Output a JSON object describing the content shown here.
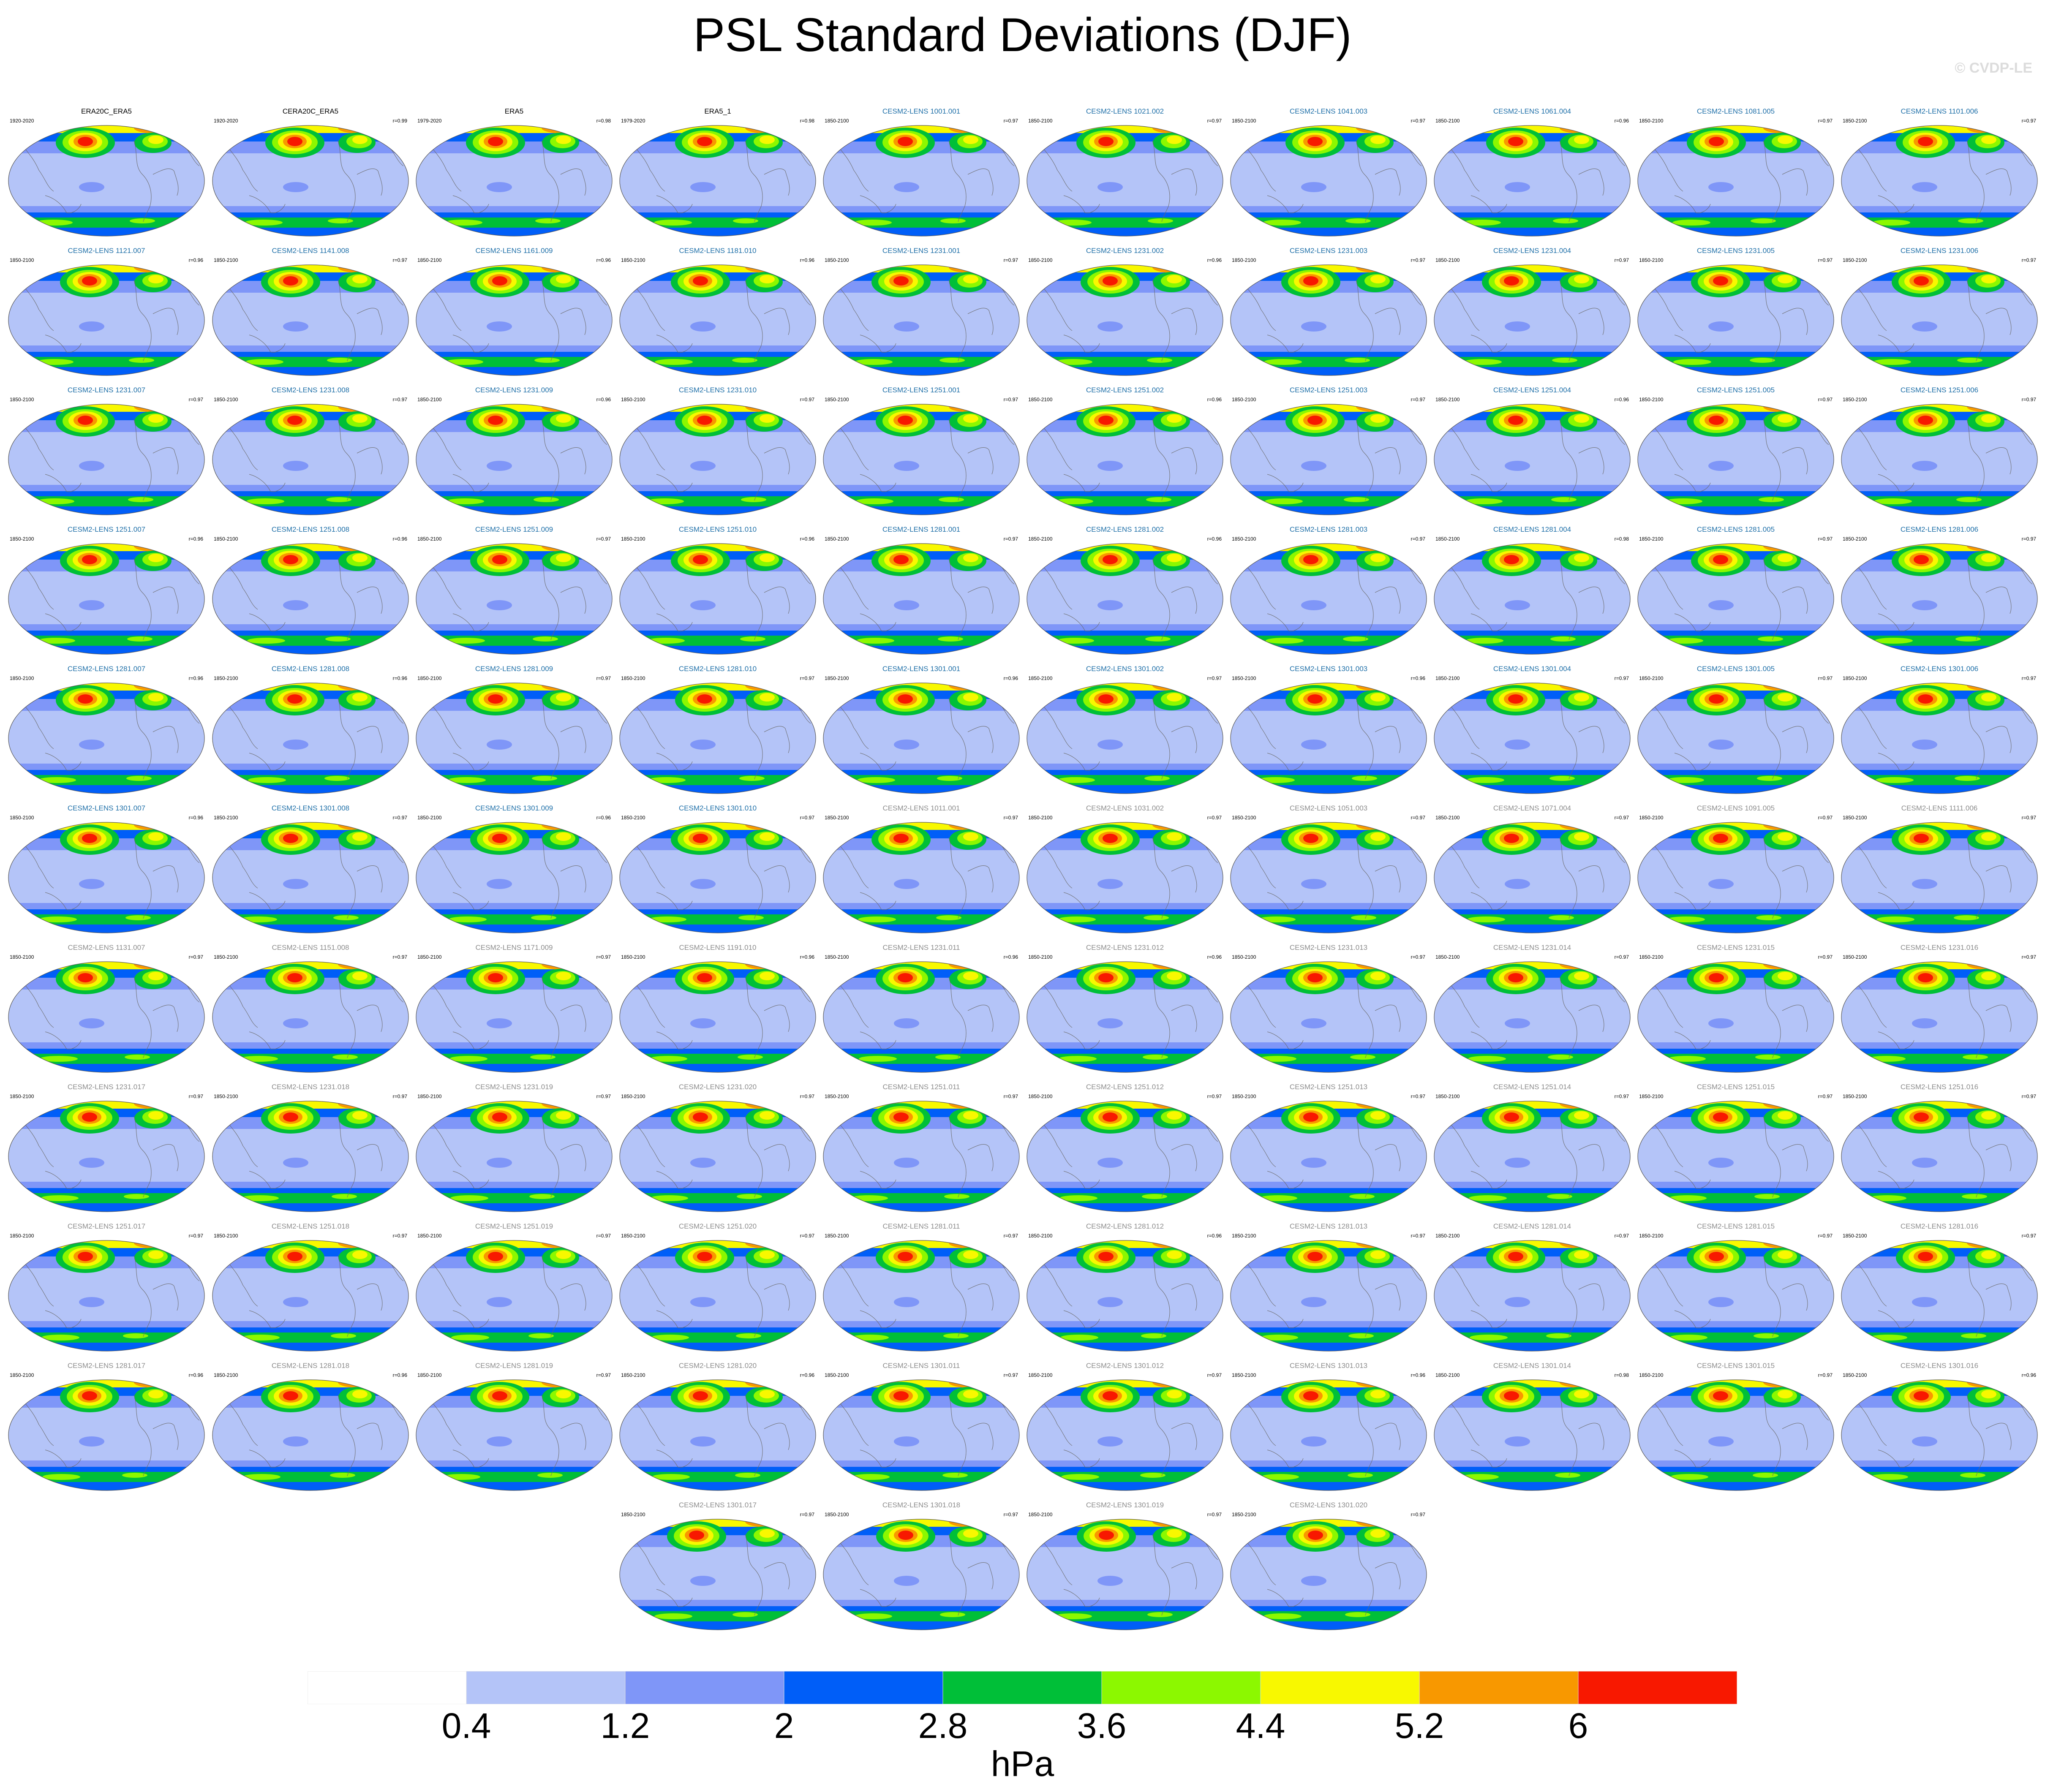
{
  "title": "PSL Standard Deviations (DJF)",
  "watermark": "© CVDP-LE",
  "panels": [
    {
      "name": "ERA20C_ERA5",
      "years": "1920-2020",
      "r": "",
      "style": "obs"
    },
    {
      "name": "CERA20C_ERA5",
      "years": "1920-2020",
      "r": "r=0.99",
      "style": "obs"
    },
    {
      "name": "ERA5",
      "years": "1979-2020",
      "r": "r=0.98",
      "style": "obs"
    },
    {
      "name": "ERA5_1",
      "years": "1979-2020",
      "r": "r=0.98",
      "style": "obs"
    },
    {
      "name": "CESM2-LENS 1001.001",
      "years": "1850-2100",
      "r": "r=0.97",
      "style": "c1"
    },
    {
      "name": "CESM2-LENS 1021.002",
      "years": "1850-2100",
      "r": "r=0.97",
      "style": "c1"
    },
    {
      "name": "CESM2-LENS 1041.003",
      "years": "1850-2100",
      "r": "r=0.97",
      "style": "c1"
    },
    {
      "name": "CESM2-LENS 1061.004",
      "years": "1850-2100",
      "r": "r=0.96",
      "style": "c1"
    },
    {
      "name": "CESM2-LENS 1081.005",
      "years": "1850-2100",
      "r": "r=0.97",
      "style": "c1"
    },
    {
      "name": "CESM2-LENS 1101.006",
      "years": "1850-2100",
      "r": "r=0.97",
      "style": "c1"
    },
    {
      "name": "CESM2-LENS 1121.007",
      "years": "1850-2100",
      "r": "r=0.96",
      "style": "c1"
    },
    {
      "name": "CESM2-LENS 1141.008",
      "years": "1850-2100",
      "r": "r=0.97",
      "style": "c1"
    },
    {
      "name": "CESM2-LENS 1161.009",
      "years": "1850-2100",
      "r": "r=0.96",
      "style": "c1"
    },
    {
      "name": "CESM2-LENS 1181.010",
      "years": "1850-2100",
      "r": "r=0.96",
      "style": "c1"
    },
    {
      "name": "CESM2-LENS 1231.001",
      "years": "1850-2100",
      "r": "r=0.97",
      "style": "c1"
    },
    {
      "name": "CESM2-LENS 1231.002",
      "years": "1850-2100",
      "r": "r=0.96",
      "style": "c1"
    },
    {
      "name": "CESM2-LENS 1231.003",
      "years": "1850-2100",
      "r": "r=0.97",
      "style": "c1"
    },
    {
      "name": "CESM2-LENS 1231.004",
      "years": "1850-2100",
      "r": "r=0.97",
      "style": "c1"
    },
    {
      "name": "CESM2-LENS 1231.005",
      "years": "1850-2100",
      "r": "r=0.97",
      "style": "c1"
    },
    {
      "name": "CESM2-LENS 1231.006",
      "years": "1850-2100",
      "r": "r=0.97",
      "style": "c1"
    },
    {
      "name": "CESM2-LENS 1231.007",
      "years": "1850-2100",
      "r": "r=0.97",
      "style": "c1"
    },
    {
      "name": "CESM2-LENS 1231.008",
      "years": "1850-2100",
      "r": "r=0.97",
      "style": "c1"
    },
    {
      "name": "CESM2-LENS 1231.009",
      "years": "1850-2100",
      "r": "r=0.96",
      "style": "c1"
    },
    {
      "name": "CESM2-LENS 1231.010",
      "years": "1850-2100",
      "r": "r=0.97",
      "style": "c1"
    },
    {
      "name": "CESM2-LENS 1251.001",
      "years": "1850-2100",
      "r": "r=0.97",
      "style": "c1"
    },
    {
      "name": "CESM2-LENS 1251.002",
      "years": "1850-2100",
      "r": "r=0.96",
      "style": "c1"
    },
    {
      "name": "CESM2-LENS 1251.003",
      "years": "1850-2100",
      "r": "r=0.97",
      "style": "c1"
    },
    {
      "name": "CESM2-LENS 1251.004",
      "years": "1850-2100",
      "r": "r=0.96",
      "style": "c1"
    },
    {
      "name": "CESM2-LENS 1251.005",
      "years": "1850-2100",
      "r": "r=0.97",
      "style": "c1"
    },
    {
      "name": "CESM2-LENS 1251.006",
      "years": "1850-2100",
      "r": "r=0.97",
      "style": "c1"
    },
    {
      "name": "CESM2-LENS 1251.007",
      "years": "1850-2100",
      "r": "r=0.96",
      "style": "c1"
    },
    {
      "name": "CESM2-LENS 1251.008",
      "years": "1850-2100",
      "r": "r=0.96",
      "style": "c1"
    },
    {
      "name": "CESM2-LENS 1251.009",
      "years": "1850-2100",
      "r": "r=0.97",
      "style": "c1"
    },
    {
      "name": "CESM2-LENS 1251.010",
      "years": "1850-2100",
      "r": "r=0.96",
      "style": "c1"
    },
    {
      "name": "CESM2-LENS 1281.001",
      "years": "1850-2100",
      "r": "r=0.97",
      "style": "c1"
    },
    {
      "name": "CESM2-LENS 1281.002",
      "years": "1850-2100",
      "r": "r=0.96",
      "style": "c1"
    },
    {
      "name": "CESM2-LENS 1281.003",
      "years": "1850-2100",
      "r": "r=0.97",
      "style": "c1"
    },
    {
      "name": "CESM2-LENS 1281.004",
      "years": "1850-2100",
      "r": "r=0.98",
      "style": "c1"
    },
    {
      "name": "CESM2-LENS 1281.005",
      "years": "1850-2100",
      "r": "r=0.97",
      "style": "c1"
    },
    {
      "name": "CESM2-LENS 1281.006",
      "years": "1850-2100",
      "r": "r=0.97",
      "style": "c1"
    },
    {
      "name": "CESM2-LENS 1281.007",
      "years": "1850-2100",
      "r": "r=0.96",
      "style": "c1"
    },
    {
      "name": "CESM2-LENS 1281.008",
      "years": "1850-2100",
      "r": "r=0.96",
      "style": "c1"
    },
    {
      "name": "CESM2-LENS 1281.009",
      "years": "1850-2100",
      "r": "r=0.97",
      "style": "c1"
    },
    {
      "name": "CESM2-LENS 1281.010",
      "years": "1850-2100",
      "r": "r=0.97",
      "style": "c1"
    },
    {
      "name": "CESM2-LENS 1301.001",
      "years": "1850-2100",
      "r": "r=0.96",
      "style": "c1"
    },
    {
      "name": "CESM2-LENS 1301.002",
      "years": "1850-2100",
      "r": "r=0.97",
      "style": "c1"
    },
    {
      "name": "CESM2-LENS 1301.003",
      "years": "1850-2100",
      "r": "r=0.96",
      "style": "c1"
    },
    {
      "name": "CESM2-LENS 1301.004",
      "years": "1850-2100",
      "r": "r=0.97",
      "style": "c1"
    },
    {
      "name": "CESM2-LENS 1301.005",
      "years": "1850-2100",
      "r": "r=0.97",
      "style": "c1"
    },
    {
      "name": "CESM2-LENS 1301.006",
      "years": "1850-2100",
      "r": "r=0.97",
      "style": "c1"
    },
    {
      "name": "CESM2-LENS 1301.007",
      "years": "1850-2100",
      "r": "r=0.96",
      "style": "c1"
    },
    {
      "name": "CESM2-LENS 1301.008",
      "years": "1850-2100",
      "r": "r=0.97",
      "style": "c1"
    },
    {
      "name": "CESM2-LENS 1301.009",
      "years": "1850-2100",
      "r": "r=0.96",
      "style": "c1"
    },
    {
      "name": "CESM2-LENS 1301.010",
      "years": "1850-2100",
      "r": "r=0.97",
      "style": "c1"
    },
    {
      "name": "CESM2-LENS 1011.001",
      "years": "1850-2100",
      "r": "r=0.97",
      "style": "c2"
    },
    {
      "name": "CESM2-LENS 1031.002",
      "years": "1850-2100",
      "r": "r=0.97",
      "style": "c2"
    },
    {
      "name": "CESM2-LENS 1051.003",
      "years": "1850-2100",
      "r": "r=0.97",
      "style": "c2"
    },
    {
      "name": "CESM2-LENS 1071.004",
      "years": "1850-2100",
      "r": "r=0.97",
      "style": "c2"
    },
    {
      "name": "CESM2-LENS 1091.005",
      "years": "1850-2100",
      "r": "r=0.97",
      "style": "c2"
    },
    {
      "name": "CESM2-LENS 1111.006",
      "years": "1850-2100",
      "r": "r=0.97",
      "style": "c2"
    },
    {
      "name": "CESM2-LENS 1131.007",
      "years": "1850-2100",
      "r": "r=0.97",
      "style": "c2"
    },
    {
      "name": "CESM2-LENS 1151.008",
      "years": "1850-2100",
      "r": "r=0.97",
      "style": "c2"
    },
    {
      "name": "CESM2-LENS 1171.009",
      "years": "1850-2100",
      "r": "r=0.97",
      "style": "c2"
    },
    {
      "name": "CESM2-LENS 1191.010",
      "years": "1850-2100",
      "r": "r=0.96",
      "style": "c2"
    },
    {
      "name": "CESM2-LENS 1231.011",
      "years": "1850-2100",
      "r": "r=0.96",
      "style": "c2"
    },
    {
      "name": "CESM2-LENS 1231.012",
      "years": "1850-2100",
      "r": "r=0.96",
      "style": "c2"
    },
    {
      "name": "CESM2-LENS 1231.013",
      "years": "1850-2100",
      "r": "r=0.97",
      "style": "c2"
    },
    {
      "name": "CESM2-LENS 1231.014",
      "years": "1850-2100",
      "r": "r=0.97",
      "style": "c2"
    },
    {
      "name": "CESM2-LENS 1231.015",
      "years": "1850-2100",
      "r": "r=0.97",
      "style": "c2"
    },
    {
      "name": "CESM2-LENS 1231.016",
      "years": "1850-2100",
      "r": "r=0.97",
      "style": "c2"
    },
    {
      "name": "CESM2-LENS 1231.017",
      "years": "1850-2100",
      "r": "r=0.97",
      "style": "c2"
    },
    {
      "name": "CESM2-LENS 1231.018",
      "years": "1850-2100",
      "r": "r=0.97",
      "style": "c2"
    },
    {
      "name": "CESM2-LENS 1231.019",
      "years": "1850-2100",
      "r": "r=0.97",
      "style": "c2"
    },
    {
      "name": "CESM2-LENS 1231.020",
      "years": "1850-2100",
      "r": "r=0.97",
      "style": "c2"
    },
    {
      "name": "CESM2-LENS 1251.011",
      "years": "1850-2100",
      "r": "r=0.97",
      "style": "c2"
    },
    {
      "name": "CESM2-LENS 1251.012",
      "years": "1850-2100",
      "r": "r=0.97",
      "style": "c2"
    },
    {
      "name": "CESM2-LENS 1251.013",
      "years": "1850-2100",
      "r": "r=0.97",
      "style": "c2"
    },
    {
      "name": "CESM2-LENS 1251.014",
      "years": "1850-2100",
      "r": "r=0.97",
      "style": "c2"
    },
    {
      "name": "CESM2-LENS 1251.015",
      "years": "1850-2100",
      "r": "r=0.97",
      "style": "c2"
    },
    {
      "name": "CESM2-LENS 1251.016",
      "years": "1850-2100",
      "r": "r=0.97",
      "style": "c2"
    },
    {
      "name": "CESM2-LENS 1251.017",
      "years": "1850-2100",
      "r": "r=0.97",
      "style": "c2"
    },
    {
      "name": "CESM2-LENS 1251.018",
      "years": "1850-2100",
      "r": "r=0.97",
      "style": "c2"
    },
    {
      "name": "CESM2-LENS 1251.019",
      "years": "1850-2100",
      "r": "r=0.97",
      "style": "c2"
    },
    {
      "name": "CESM2-LENS 1251.020",
      "years": "1850-2100",
      "r": "r=0.97",
      "style": "c2"
    },
    {
      "name": "CESM2-LENS 1281.011",
      "years": "1850-2100",
      "r": "r=0.97",
      "style": "c2"
    },
    {
      "name": "CESM2-LENS 1281.012",
      "years": "1850-2100",
      "r": "r=0.96",
      "style": "c2"
    },
    {
      "name": "CESM2-LENS 1281.013",
      "years": "1850-2100",
      "r": "r=0.97",
      "style": "c2"
    },
    {
      "name": "CESM2-LENS 1281.014",
      "years": "1850-2100",
      "r": "r=0.97",
      "style": "c2"
    },
    {
      "name": "CESM2-LENS 1281.015",
      "years": "1850-2100",
      "r": "r=0.97",
      "style": "c2"
    },
    {
      "name": "CESM2-LENS 1281.016",
      "years": "1850-2100",
      "r": "r=0.97",
      "style": "c2"
    },
    {
      "name": "CESM2-LENS 1281.017",
      "years": "1850-2100",
      "r": "r=0.96",
      "style": "c2"
    },
    {
      "name": "CESM2-LENS 1281.018",
      "years": "1850-2100",
      "r": "r=0.96",
      "style": "c2"
    },
    {
      "name": "CESM2-LENS 1281.019",
      "years": "1850-2100",
      "r": "r=0.97",
      "style": "c2"
    },
    {
      "name": "CESM2-LENS 1281.020",
      "years": "1850-2100",
      "r": "r=0.96",
      "style": "c2"
    },
    {
      "name": "CESM2-LENS 1301.011",
      "years": "1850-2100",
      "r": "r=0.97",
      "style": "c2"
    },
    {
      "name": "CESM2-LENS 1301.012",
      "years": "1850-2100",
      "r": "r=0.97",
      "style": "c2"
    },
    {
      "name": "CESM2-LENS 1301.013",
      "years": "1850-2100",
      "r": "r=0.96",
      "style": "c2"
    },
    {
      "name": "CESM2-LENS 1301.014",
      "years": "1850-2100",
      "r": "r=0.98",
      "style": "c2"
    },
    {
      "name": "CESM2-LENS 1301.015",
      "years": "1850-2100",
      "r": "r=0.97",
      "style": "c2"
    },
    {
      "name": "CESM2-LENS 1301.016",
      "years": "1850-2100",
      "r": "r=0.96",
      "style": "c2"
    },
    {
      "name": "CESM2-LENS 1301.017",
      "years": "1850-2100",
      "r": "r=0.97",
      "style": "c2"
    },
    {
      "name": "CESM2-LENS 1301.018",
      "years": "1850-2100",
      "r": "r=0.97",
      "style": "c2"
    },
    {
      "name": "CESM2-LENS 1301.019",
      "years": "1850-2100",
      "r": "r=0.97",
      "style": "c2"
    },
    {
      "name": "CESM2-LENS 1301.020",
      "years": "1850-2100",
      "r": "r=0.97",
      "style": "c2"
    }
  ],
  "colorbar": {
    "colors": [
      "#ffffff",
      "#b4c4f8",
      "#7f96f8",
      "#005ef8",
      "#00bf38",
      "#8cf800",
      "#f8f800",
      "#f89800",
      "#f81800"
    ],
    "ticks": [
      "0.4",
      "1.2",
      "2",
      "2.8",
      "3.6",
      "4.4",
      "5.2",
      "6"
    ],
    "units": "hPa"
  }
}
